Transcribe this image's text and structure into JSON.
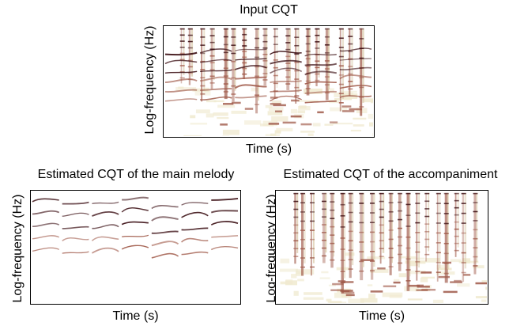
{
  "chart_data": [
    {
      "type": "heatmap",
      "title": "Input CQT",
      "xlabel": "Time (s)",
      "ylabel": "Log-frequency (Hz)",
      "grid": false,
      "colormap": [
        "#ffffff",
        "#f0ead0",
        "#d9c9a8",
        "#a05a4a",
        "#3a0d12"
      ],
      "content": "mixture spectrogram: sustained harmonic partials with melodic glides plus vertical percussive onsets"
    },
    {
      "type": "heatmap",
      "title": "Estimated CQT of the main melody",
      "xlabel": "Time (s)",
      "ylabel": "Log-frequency (Hz)",
      "grid": false,
      "colormap": [
        "#ffffff",
        "#f0ead0",
        "#d9c9a8",
        "#a05a4a",
        "#3a0d12"
      ],
      "content": "isolated melody: curved harmonic partials in the upper region"
    },
    {
      "type": "heatmap",
      "title": "Estimated CQT of the accompaniment",
      "xlabel": "Time (s)",
      "ylabel": "Log-frequency (Hz)",
      "grid": false,
      "colormap": [
        "#ffffff",
        "#f0ead0",
        "#d9c9a8",
        "#a05a4a",
        "#3a0d12"
      ],
      "content": "accompaniment: vertical onsets and steady horizontal partials"
    }
  ]
}
